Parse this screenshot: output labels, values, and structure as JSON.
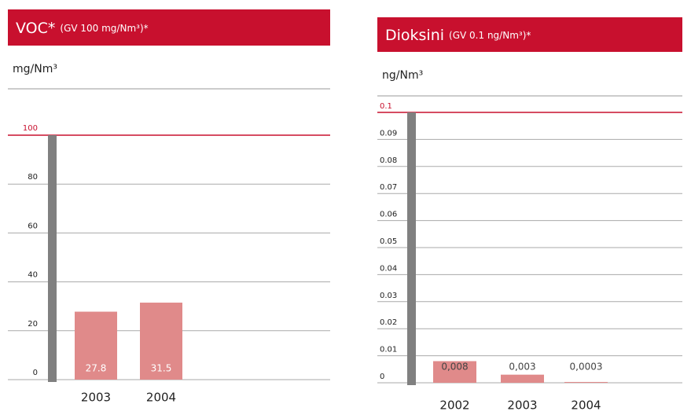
{
  "chart_data": [
    {
      "type": "bar",
      "title": "VOC*",
      "subtitle": "(GV 100 mg/Nm³)*",
      "y_unit": "mg/Nm³",
      "categories": [
        "2003",
        "2004"
      ],
      "values": [
        27.8,
        31.5
      ],
      "color": "#e08a8a",
      "value_label_color": "#ffffff",
      "limit_color": "#c8102e",
      "ylim": [
        0,
        100
      ],
      "yticks": [
        0,
        20,
        40,
        60,
        80,
        100
      ],
      "grid": true
    },
    {
      "type": "bar",
      "title": "Dioksini",
      "subtitle": "(GV 0.1 ng/Nm³)*",
      "y_unit": "ng/Nm³",
      "categories": [
        "2002",
        "2003",
        "2004"
      ],
      "values": [
        0.008,
        0.003,
        0.0003
      ],
      "value_labels": [
        "0,008",
        "0,003",
        "0,0003"
      ],
      "color": "#e08a8a",
      "value_label_color": "#444444",
      "limit_color": "#c8102e",
      "ylim": [
        0,
        0.1
      ],
      "yticks": [
        0,
        0.01,
        0.02,
        0.03,
        0.04,
        0.05,
        0.06,
        0.07,
        0.08,
        0.09,
        0.1
      ],
      "grid": true
    }
  ]
}
